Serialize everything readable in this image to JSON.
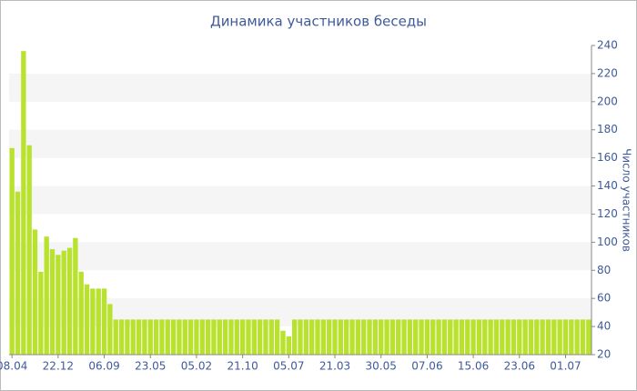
{
  "chart_data": {
    "type": "bar",
    "title": "Динамика участников беседы",
    "y_label": "Число участников",
    "categories": [
      "08.04",
      null,
      null,
      null,
      null,
      null,
      null,
      null,
      "22.12",
      null,
      null,
      null,
      null,
      null,
      null,
      null,
      "06.09",
      null,
      null,
      null,
      null,
      null,
      null,
      null,
      "23.05",
      null,
      null,
      null,
      null,
      null,
      null,
      null,
      "05.02",
      null,
      null,
      null,
      null,
      null,
      null,
      null,
      "21.10",
      null,
      null,
      null,
      null,
      null,
      null,
      null,
      "05.07",
      null,
      null,
      null,
      null,
      null,
      null,
      null,
      "21.03",
      null,
      null,
      null,
      null,
      null,
      null,
      null,
      "30.05",
      null,
      null,
      null,
      null,
      null,
      null,
      null,
      "07.06",
      null,
      null,
      null,
      null,
      null,
      null,
      null,
      "15.06",
      null,
      null,
      null,
      null,
      null,
      null,
      null,
      "23.06",
      null,
      null,
      null,
      null,
      null,
      null,
      null,
      "01.07",
      null,
      null,
      null,
      null
    ],
    "values": [
      167,
      136,
      236,
      169,
      109,
      79,
      104,
      95,
      91,
      94,
      96,
      103,
      79,
      70,
      67,
      67,
      67,
      56,
      45,
      45,
      45,
      45,
      45,
      45,
      45,
      45,
      45,
      45,
      45,
      45,
      45,
      45,
      45,
      45,
      45,
      45,
      45,
      45,
      45,
      45,
      45,
      45,
      45,
      45,
      45,
      45,
      45,
      37,
      33,
      45,
      45,
      45,
      45,
      45,
      45,
      45,
      45,
      45,
      45,
      45,
      45,
      45,
      45,
      45,
      45,
      45,
      45,
      45,
      45,
      45,
      45,
      45,
      45,
      45,
      45,
      45,
      45,
      45,
      45,
      45,
      45,
      45,
      45,
      45,
      45,
      45,
      45,
      45,
      45,
      45,
      45,
      45,
      45,
      45,
      45,
      45,
      45,
      45,
      45,
      45,
      45
    ],
    "color": "#b8e22d",
    "ylim": [
      20,
      240
    ],
    "yticks": [
      20,
      40,
      60,
      80,
      100,
      120,
      140,
      160,
      180,
      200,
      220,
      240
    ],
    "y_axis_side": "right",
    "banded_background": true
  }
}
